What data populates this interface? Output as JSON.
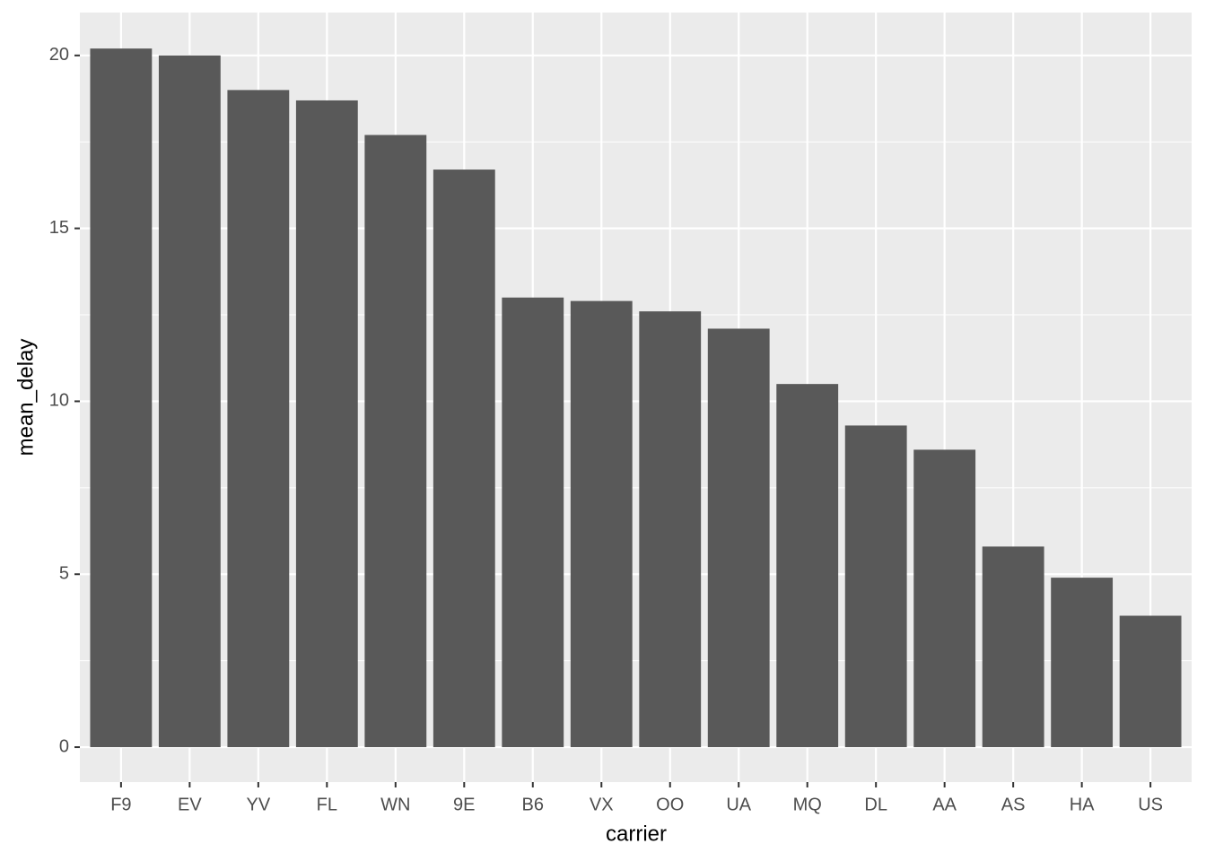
{
  "chart_data": {
    "type": "bar",
    "x_label": "carrier",
    "y_label": "mean_delay",
    "categories": [
      "F9",
      "EV",
      "YV",
      "FL",
      "WN",
      "9E",
      "B6",
      "VX",
      "OO",
      "UA",
      "MQ",
      "DL",
      "AA",
      "AS",
      "HA",
      "US"
    ],
    "values": [
      20.2,
      20.0,
      19.0,
      18.7,
      17.7,
      16.7,
      13.0,
      12.9,
      12.6,
      12.1,
      10.5,
      9.3,
      8.6,
      5.8,
      4.9,
      3.8
    ],
    "color": "#595959",
    "ylim": [
      -1.01,
      21.24
    ],
    "yticks": [
      0,
      5,
      10,
      15,
      20
    ],
    "minor_yticks": [
      2.5,
      7.5,
      12.5,
      17.5
    ],
    "grid": true
  }
}
